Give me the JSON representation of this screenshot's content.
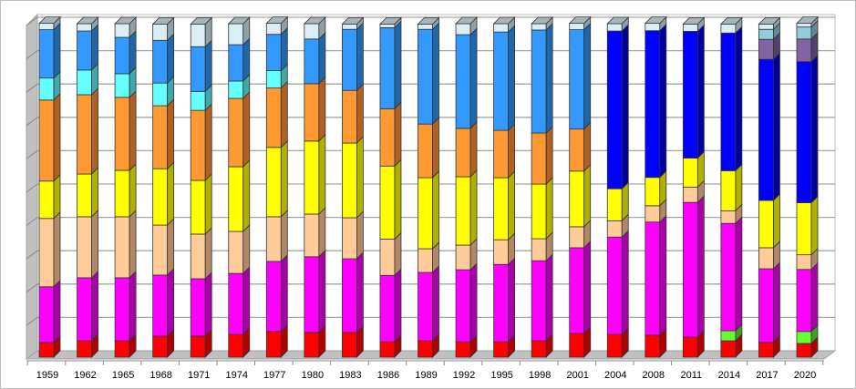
{
  "chart_data": {
    "type": "bar",
    "stacked": true,
    "normalized": true,
    "style": "3d-stacked-column",
    "ylim": [
      0,
      100
    ],
    "grid": true,
    "legend": "none",
    "categories": [
      "1959",
      "1962",
      "1965",
      "1968",
      "1971",
      "1974",
      "1977",
      "1980",
      "1983",
      "1986",
      "1989",
      "1992",
      "1995",
      "1998",
      "2001",
      "2004",
      "2008",
      "2011",
      "2014",
      "2017",
      "2020"
    ],
    "series": [
      {
        "color": "#ff0000",
        "side": "#b00000",
        "values": [
          4.4,
          4.9,
          4.9,
          6.3,
          6.3,
          6.8,
          7.7,
          7.4,
          7.4,
          4.6,
          4.9,
          4.6,
          4.6,
          4.9,
          7.1,
          6.8,
          6.6,
          6.0,
          4.9,
          4.4,
          4.1
        ]
      },
      {
        "color": "#66ff33",
        "side": "#3fa020",
        "values": [
          0,
          0,
          0,
          0,
          0,
          0,
          0,
          0,
          0,
          0,
          0,
          0,
          0,
          0,
          0,
          0,
          0,
          0,
          3.0,
          0,
          3.6
        ]
      },
      {
        "color": "#ff00ff",
        "side": "#aa00aa",
        "values": [
          16.7,
          18.9,
          18.9,
          18.3,
          17.2,
          18.3,
          21.0,
          22.7,
          22.1,
          19.9,
          20.5,
          21.6,
          23.2,
          24.0,
          25.7,
          29.2,
          33.9,
          40.4,
          32.2,
          22.1,
          18.6
        ]
      },
      {
        "color": "#ffcc99",
        "side": "#b08868",
        "values": [
          20.5,
          18.3,
          18.3,
          15.0,
          13.4,
          12.6,
          13.4,
          12.8,
          12.3,
          10.9,
          7.1,
          7.4,
          7.4,
          6.6,
          6.3,
          4.9,
          4.9,
          4.6,
          3.8,
          6.3,
          4.4
        ]
      },
      {
        "color": "#ffff00",
        "side": "#b0b000",
        "values": [
          11.2,
          12.8,
          13.9,
          16.9,
          16.1,
          19.4,
          20.8,
          21.9,
          22.4,
          21.9,
          21.3,
          20.5,
          18.6,
          16.4,
          16.7,
          9.6,
          8.5,
          8.7,
          12.0,
          14.2,
          15.6
        ]
      },
      {
        "color": "#ff9933",
        "side": "#b06020",
        "values": [
          24.3,
          23.8,
          21.9,
          18.9,
          21.0,
          20.5,
          17.8,
          17.2,
          15.8,
          17.2,
          16.1,
          14.5,
          14.2,
          15.3,
          12.6,
          0,
          0,
          0,
          0,
          0,
          0
        ]
      },
      {
        "color": "#66ffff",
        "side": "#40a8a8",
        "values": [
          6.6,
          7.4,
          7.1,
          6.8,
          5.7,
          5.2,
          5.2,
          0,
          0,
          0,
          0,
          0,
          0,
          0,
          0,
          0,
          0,
          0,
          0,
          0,
          0
        ]
      },
      {
        "color": "#3399ff",
        "side": "#1f66aa",
        "values": [
          14.5,
          11.7,
          10.9,
          12.8,
          13.4,
          10.9,
          10.9,
          13.4,
          18.3,
          24.3,
          28.4,
          28.1,
          29.5,
          30.9,
          29.8,
          0,
          0,
          0,
          0,
          0,
          0
        ]
      },
      {
        "color": "#0000ff",
        "side": "#0000a0",
        "values": [
          0,
          0,
          0,
          0,
          0,
          0,
          0,
          0,
          0,
          0,
          0,
          0,
          0,
          0,
          0,
          47.3,
          44.0,
          38.0,
          41.3,
          42.3,
          42.3
        ]
      },
      {
        "color": "#8064a2",
        "side": "#54406c",
        "values": [
          0,
          0,
          0,
          0,
          0,
          0,
          0,
          0,
          0,
          0,
          0,
          0,
          0,
          0,
          0,
          0,
          0,
          0,
          0,
          6.0,
          6.8
        ]
      },
      {
        "color": "#93cddd",
        "side": "#608a96",
        "values": [
          0,
          0,
          0,
          0,
          0,
          0,
          0,
          0,
          0,
          0,
          0,
          0,
          0,
          0,
          0,
          0,
          0,
          0,
          0,
          3.0,
          3.6
        ]
      },
      {
        "color": "#dbeef4",
        "side": "#8fa0a6",
        "values": [
          1.9,
          2.2,
          4.1,
          4.9,
          6.8,
          6.3,
          3.3,
          4.6,
          1.6,
          1.1,
          1.6,
          3.3,
          2.5,
          1.9,
          1.9,
          2.2,
          2.2,
          2.2,
          2.7,
          1.6,
          1.1
        ]
      }
    ],
    "title": "",
    "xlabel": "",
    "ylabel": ""
  }
}
